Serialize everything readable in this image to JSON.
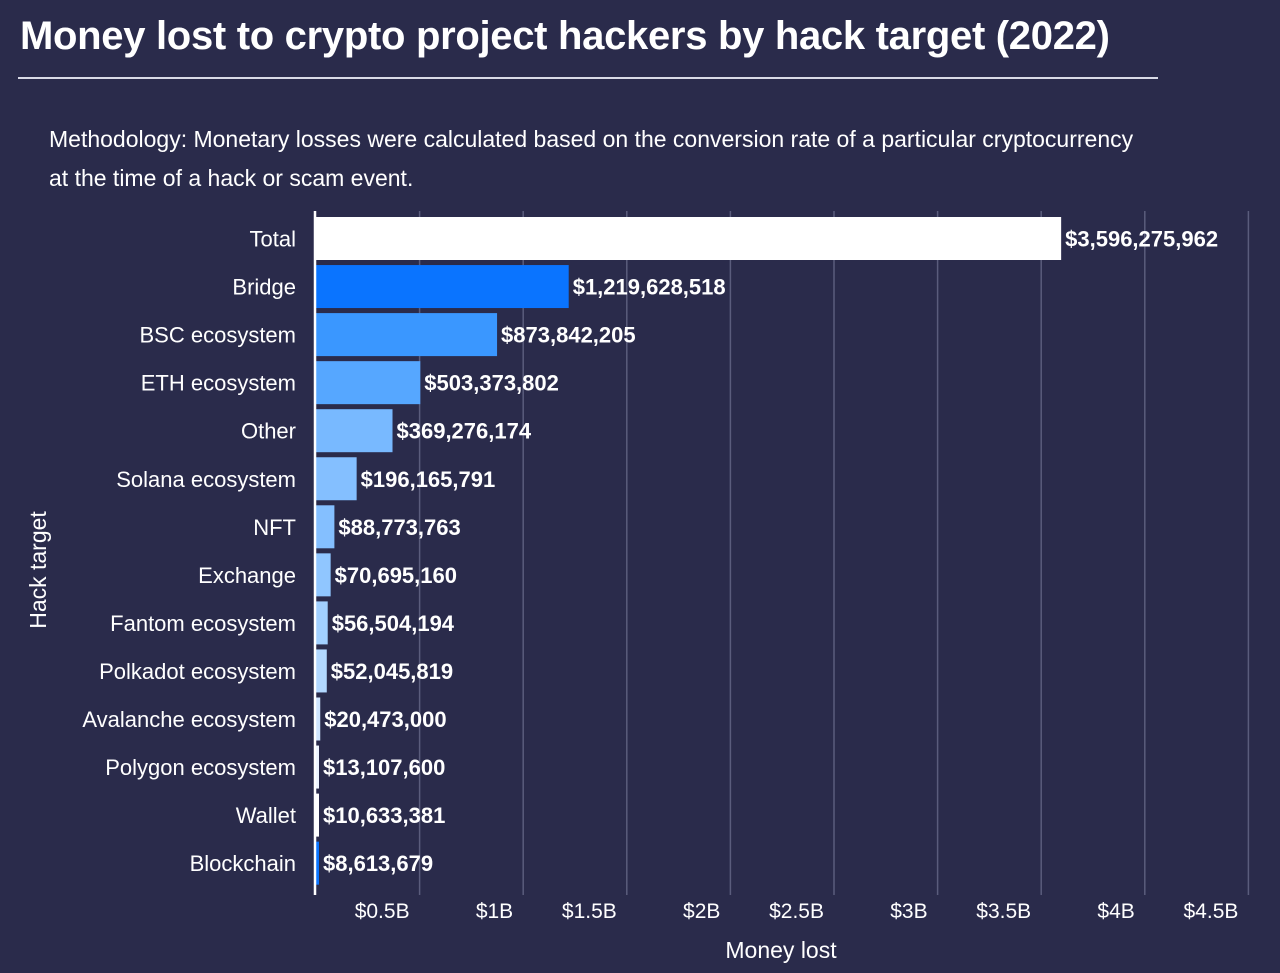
{
  "chart_data": {
    "type": "bar",
    "orientation": "horizontal",
    "title": "Money lost to crypto project hackers by hack target (2022)",
    "subtitle": "Methodology: Monetary losses were calculated based on the conversion rate of a particular cryptocurrency at the time of a hack or scam event.",
    "xlabel": "Money lost",
    "ylabel": "Hack target",
    "xlim": [
      0,
      4500000000
    ],
    "grid": true,
    "x_ticks": [
      {
        "value": 500000000,
        "label": "$0.5B"
      },
      {
        "value": 1000000000,
        "label": "$1B"
      },
      {
        "value": 1500000000,
        "label": "$1.5B"
      },
      {
        "value": 2000000000,
        "label": "$2B"
      },
      {
        "value": 2500000000,
        "label": "$2.5B"
      },
      {
        "value": 3000000000,
        "label": "$3B"
      },
      {
        "value": 3500000000,
        "label": "$3.5B"
      },
      {
        "value": 4000000000,
        "label": "$4B"
      },
      {
        "value": 4500000000,
        "label": "$4.5B"
      }
    ],
    "categories": [
      "Total",
      "Bridge",
      "BSC ecosystem",
      "ETH ecosystem",
      "Other",
      "Solana ecosystem",
      "NFT",
      "Exchange",
      "Fantom ecosystem",
      "Polkadot ecosystem",
      "Avalanche ecosystem",
      "Polygon ecosystem",
      "Wallet",
      "Blockchain"
    ],
    "values": [
      3596275962,
      1219628518,
      873842205,
      503373802,
      369276174,
      196165791,
      88773763,
      70695160,
      56504194,
      52045819,
      20473000,
      13107600,
      10633381,
      8613679
    ],
    "labels": [
      "$3,596,275,962",
      "$1,219,628,518",
      "$873,842,205",
      "$503,373,802",
      "$369,276,174",
      "$196,165,791",
      "$88,773,763",
      "$70,695,160",
      "$56,504,194",
      "$52,045,819",
      "$20,473,000",
      "$13,107,600",
      "$10,633,381",
      "$8,613,679"
    ],
    "colors": [
      "#ffffff",
      "#0a74ff",
      "#3a97ff",
      "#56a7ff",
      "#78b9ff",
      "#84bfff",
      "#84bfff",
      "#90c6ff",
      "#a2d0ff",
      "#b2d8ff",
      "#d0e6ff",
      "#eef5ff",
      "#ffffff",
      "#0a74ff"
    ]
  },
  "colors": {
    "background": "#2a2b4b",
    "gridline": "#5a5c7c",
    "axis": "#ffffff"
  }
}
